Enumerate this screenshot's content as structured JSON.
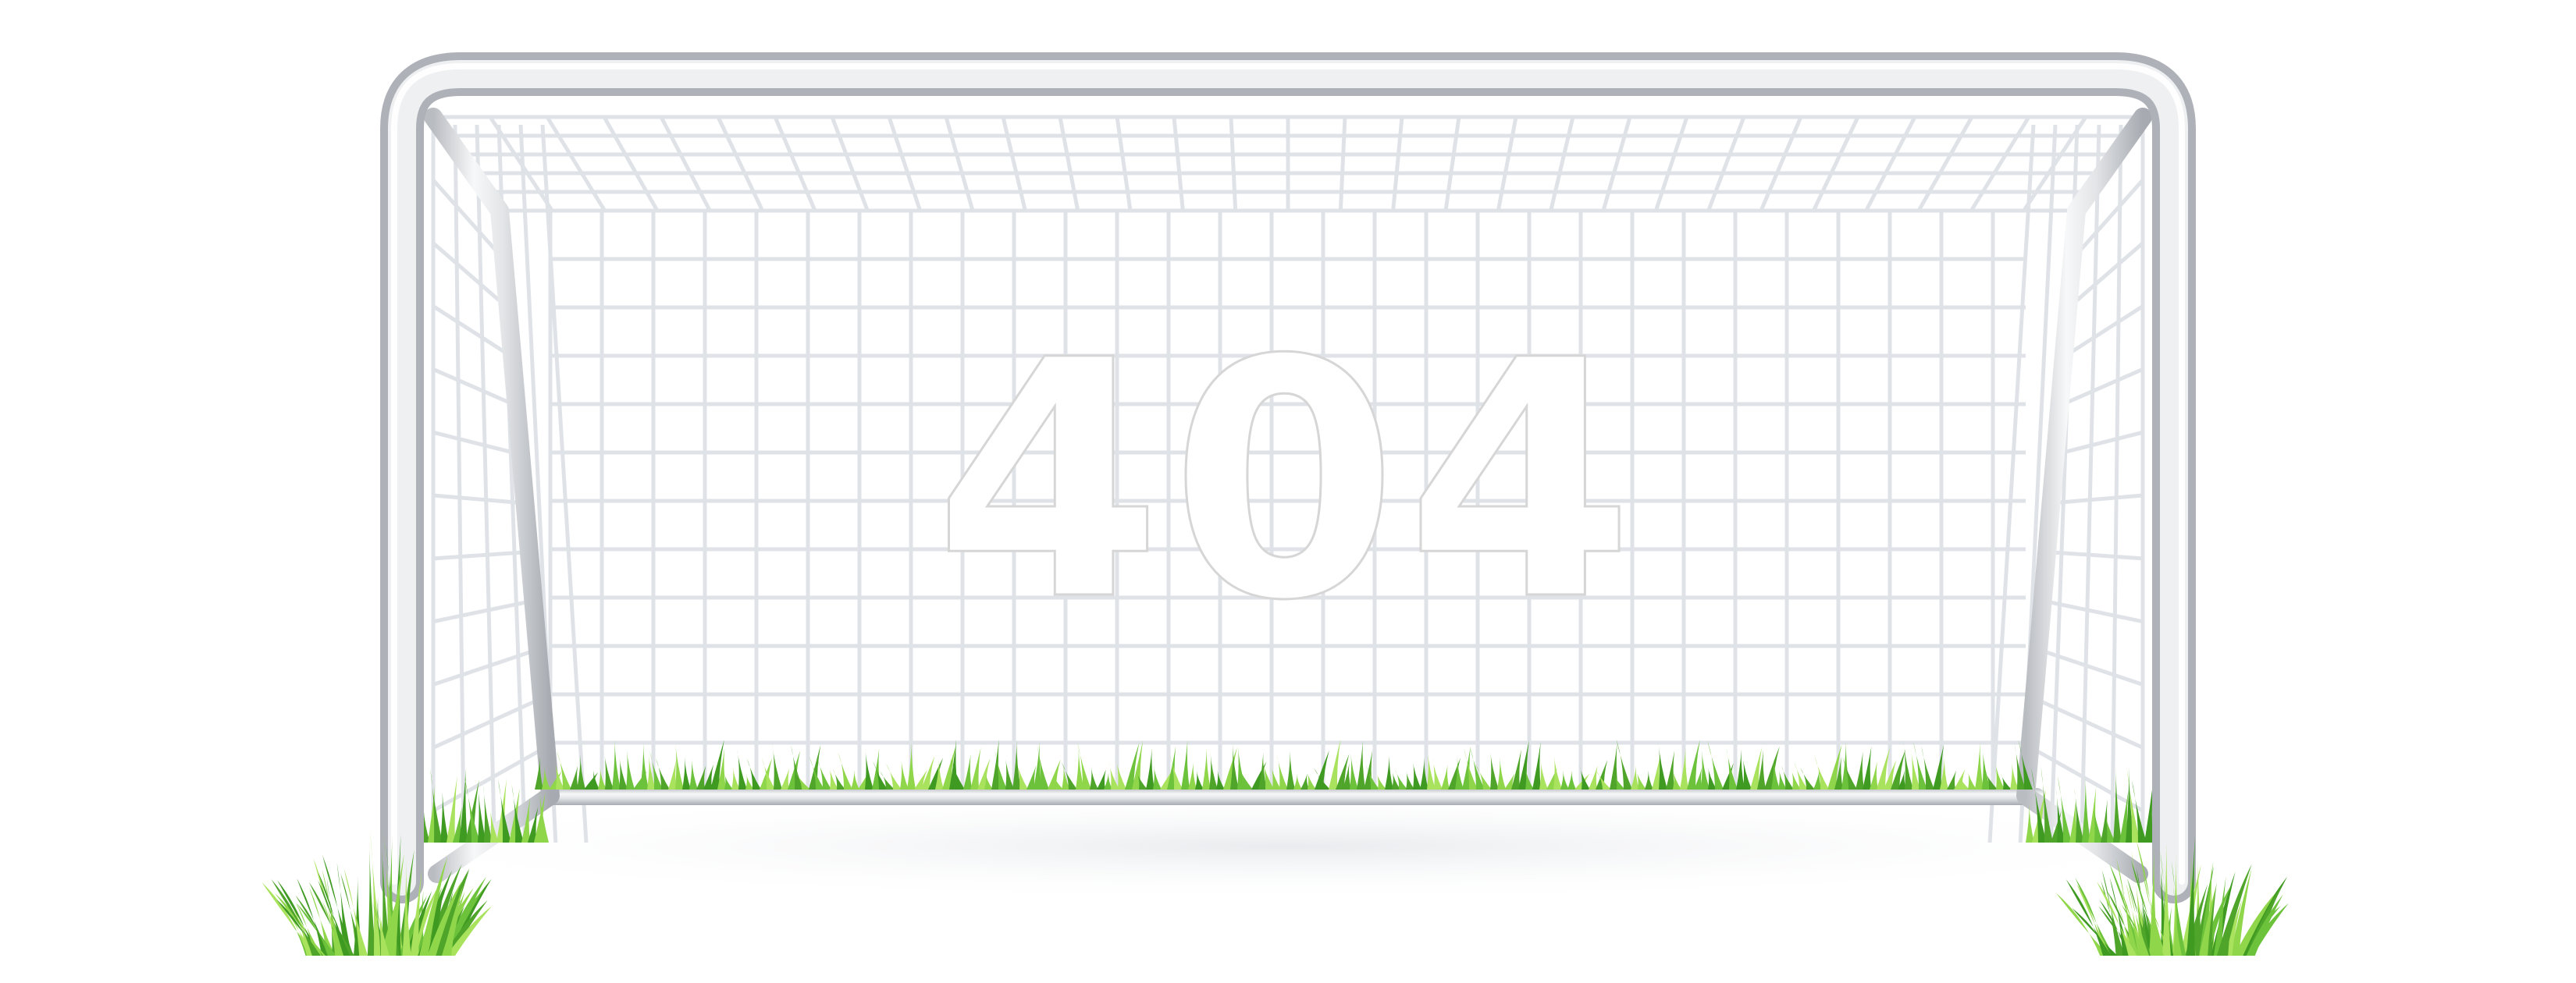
{
  "error_code": "404",
  "illustration": {
    "subject": "soccer-goal",
    "colors": {
      "frame_light": "#f4f5f7",
      "frame_mid": "#d7d9dd",
      "frame_dark": "#a9adb3",
      "net": "#dfe3e8",
      "grass_light": "#9fdc4a",
      "grass_dark": "#4fa52a",
      "text_stroke": "#d6d6d6"
    }
  }
}
